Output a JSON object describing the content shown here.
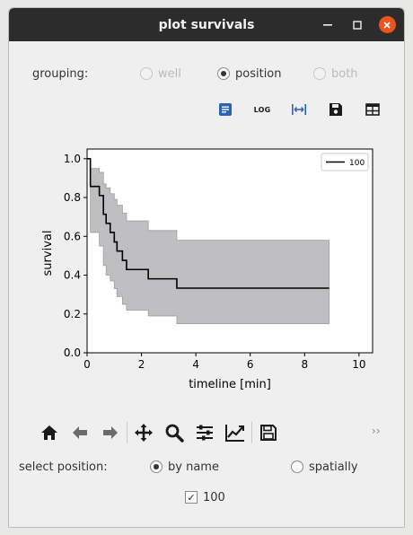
{
  "window": {
    "title": "plot survivals"
  },
  "grouping": {
    "label": "grouping:",
    "options": [
      {
        "label": "well",
        "checked": false,
        "enabled": false
      },
      {
        "label": "position",
        "checked": true,
        "enabled": true
      },
      {
        "label": "both",
        "checked": false,
        "enabled": false
      }
    ]
  },
  "toolbar": {
    "buttons": [
      "notes-icon",
      "log-scale-button",
      "fit-width-button",
      "save-icon",
      "table-icon"
    ],
    "log_label": "LOG",
    "accent": "#2a62b8"
  },
  "chart_data": {
    "type": "line",
    "xlabel": "timeline [min]",
    "ylabel": "survival",
    "xlim": [
      0,
      10.5
    ],
    "ylim": [
      0,
      1.05
    ],
    "xticks": [
      "0",
      "2",
      "4",
      "6",
      "8",
      "10"
    ],
    "xtick_values": [
      0,
      2,
      4,
      6,
      8,
      10
    ],
    "yticks": [
      "0.0",
      "0.2",
      "0.4",
      "0.6",
      "0.8",
      "1.0"
    ],
    "ytick_values": [
      0.0,
      0.2,
      0.4,
      0.6,
      0.8,
      1.0
    ],
    "legend": {
      "placement": "top-right"
    },
    "series": [
      {
        "name": "100",
        "color": "#000000",
        "step": true,
        "x": [
          0,
          0.12,
          0.45,
          0.6,
          0.7,
          0.85,
          1.0,
          1.1,
          1.3,
          1.45,
          2.25,
          3.3,
          8.9
        ],
        "y": [
          1.0,
          0.857,
          0.81,
          0.714,
          0.667,
          0.62,
          0.571,
          0.524,
          0.476,
          0.429,
          0.381,
          0.333,
          0.333
        ],
        "ci_upper": [
          1.0,
          0.95,
          0.93,
          0.87,
          0.85,
          0.82,
          0.79,
          0.76,
          0.72,
          0.68,
          0.63,
          0.58,
          0.53
        ],
        "ci_lower": [
          1.0,
          0.62,
          0.55,
          0.45,
          0.4,
          0.37,
          0.33,
          0.29,
          0.25,
          0.22,
          0.19,
          0.15,
          0.15
        ],
        "ci_color": "#bfbfc1"
      }
    ]
  },
  "navbar": {
    "items": [
      "home-icon",
      "back-icon",
      "forward-icon",
      "sep",
      "pan-icon",
      "zoom-icon",
      "subplots-icon",
      "edit-curves-icon",
      "sep",
      "save-figure-icon"
    ],
    "more": "››"
  },
  "select_position": {
    "label": "select position:",
    "options": [
      {
        "label": "by name",
        "checked": true
      },
      {
        "label": "spatially",
        "checked": false
      }
    ]
  },
  "positions": [
    {
      "label": "100",
      "checked": true
    }
  ]
}
